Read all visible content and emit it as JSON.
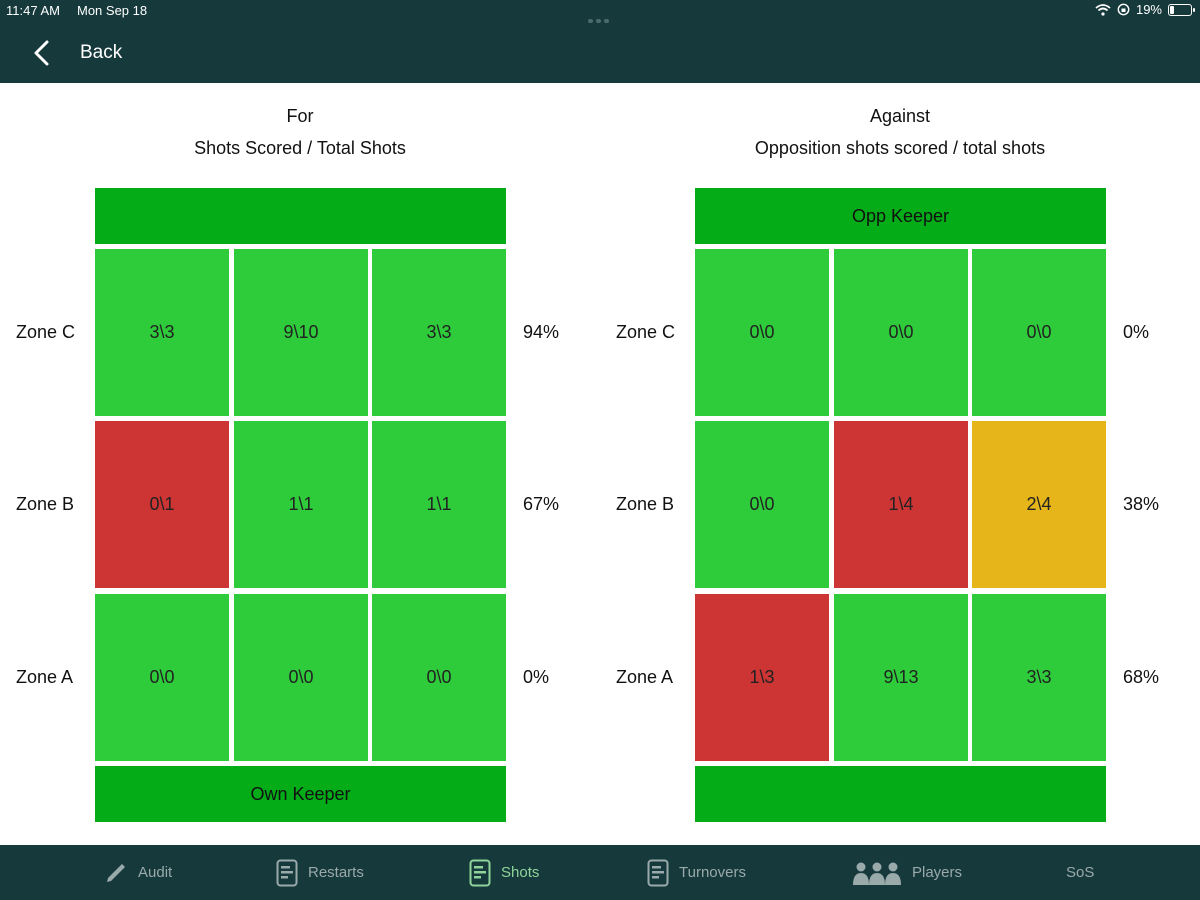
{
  "status_bar": {
    "time": "11:47 AM",
    "date": "Mon Sep 18",
    "battery": "19%"
  },
  "nav": {
    "back_label": "Back"
  },
  "panels": [
    {
      "heading_line1": "For",
      "heading_line2": "Shots Scored / Total Shots",
      "top_bar": "",
      "bottom_bar": "Own Keeper",
      "rows": [
        {
          "zone": "Zone C",
          "cells": [
            "3\\3",
            "9\\10",
            "3\\3"
          ],
          "colors": [
            "green",
            "green",
            "green"
          ],
          "pct": "94%"
        },
        {
          "zone": "Zone B",
          "cells": [
            "0\\1",
            "1\\1",
            "1\\1"
          ],
          "colors": [
            "red",
            "green",
            "green"
          ],
          "pct": "67%"
        },
        {
          "zone": "Zone A",
          "cells": [
            "0\\0",
            "0\\0",
            "0\\0"
          ],
          "colors": [
            "green",
            "green",
            "green"
          ],
          "pct": "0%"
        }
      ]
    },
    {
      "heading_line1": "Against",
      "heading_line2": "Opposition shots scored / total shots",
      "top_bar": "Opp Keeper",
      "bottom_bar": "",
      "rows": [
        {
          "zone": "Zone C",
          "cells": [
            "0\\0",
            "0\\0",
            "0\\0"
          ],
          "colors": [
            "green",
            "green",
            "green"
          ],
          "pct": "0%"
        },
        {
          "zone": "Zone B",
          "cells": [
            "0\\0",
            "1\\4",
            "2\\4"
          ],
          "colors": [
            "green",
            "red",
            "amber"
          ],
          "pct": "38%"
        },
        {
          "zone": "Zone A",
          "cells": [
            "1\\3",
            "9\\13",
            "3\\3"
          ],
          "colors": [
            "red",
            "green",
            "green"
          ],
          "pct": "68%"
        }
      ]
    }
  ],
  "tabs": [
    {
      "label": "Audit",
      "icon": "pencil-icon"
    },
    {
      "label": "Restarts",
      "icon": "list-icon"
    },
    {
      "label": "Shots",
      "icon": "list-icon",
      "active": true
    },
    {
      "label": "Turnovers",
      "icon": "list-icon"
    },
    {
      "label": "Players",
      "icon": "people-icon"
    },
    {
      "label": "SoS",
      "icon": ""
    }
  ],
  "colors": {
    "header_bg": "#16393c",
    "keeper_bar": "#04ad18",
    "cell_green": "#2ecb3b",
    "cell_red": "#cd3434",
    "cell_amber": "#e6b519",
    "tab_active": "#8fd49a"
  }
}
